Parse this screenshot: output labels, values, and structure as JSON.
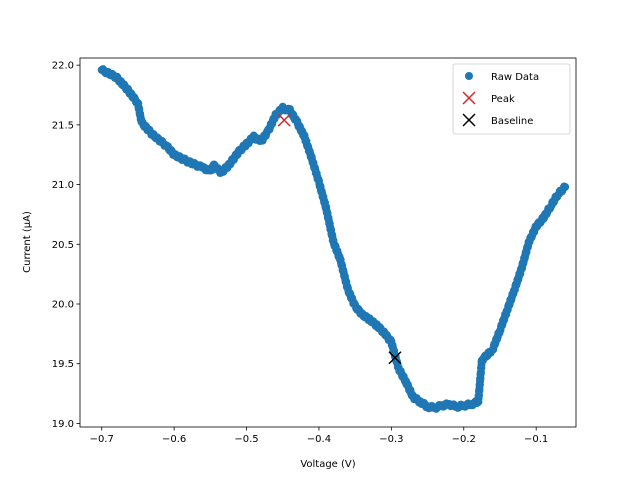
{
  "chart_data": {
    "type": "scatter",
    "xlabel": "Voltage (V)",
    "ylabel": "Current (µA)",
    "xlim": [
      -0.73,
      -0.045
    ],
    "ylim": [
      18.97,
      22.06
    ],
    "xticks": [
      -0.7,
      -0.6,
      -0.5,
      -0.4,
      -0.3,
      -0.2,
      -0.1
    ],
    "xtick_labels": [
      "−0.7",
      "−0.6",
      "−0.5",
      "−0.4",
      "−0.3",
      "−0.2",
      "−0.1"
    ],
    "yticks": [
      19.0,
      19.5,
      20.0,
      20.5,
      21.0,
      21.5,
      22.0
    ],
    "ytick_labels": [
      "19.0",
      "19.5",
      "20.0",
      "20.5",
      "21.0",
      "21.5",
      "22.0"
    ],
    "legend_position": "top-right",
    "series": [
      {
        "name": "Raw Data",
        "marker": "circle",
        "color": "#1f77b4",
        "curve": [
          [
            -0.7,
            21.96
          ],
          [
            -0.68,
            21.9
          ],
          [
            -0.665,
            21.8
          ],
          [
            -0.65,
            21.68
          ],
          [
            -0.645,
            21.52
          ],
          [
            -0.63,
            21.42
          ],
          [
            -0.61,
            21.32
          ],
          [
            -0.6,
            21.25
          ],
          [
            -0.58,
            21.19
          ],
          [
            -0.56,
            21.14
          ],
          [
            -0.55,
            21.11
          ],
          [
            -0.545,
            21.16
          ],
          [
            -0.535,
            21.1
          ],
          [
            -0.525,
            21.16
          ],
          [
            -0.51,
            21.28
          ],
          [
            -0.5,
            21.34
          ],
          [
            -0.49,
            21.4
          ],
          [
            -0.48,
            21.36
          ],
          [
            -0.47,
            21.45
          ],
          [
            -0.46,
            21.58
          ],
          [
            -0.45,
            21.64
          ],
          [
            -0.44,
            21.62
          ],
          [
            -0.43,
            21.52
          ],
          [
            -0.42,
            21.4
          ],
          [
            -0.41,
            21.22
          ],
          [
            -0.4,
            21.02
          ],
          [
            -0.39,
            20.8
          ],
          [
            -0.38,
            20.52
          ],
          [
            -0.37,
            20.36
          ],
          [
            -0.36,
            20.12
          ],
          [
            -0.35,
            19.98
          ],
          [
            -0.34,
            19.91
          ],
          [
            -0.33,
            19.87
          ],
          [
            -0.32,
            19.82
          ],
          [
            -0.31,
            19.76
          ],
          [
            -0.3,
            19.68
          ],
          [
            -0.29,
            19.46
          ],
          [
            -0.28,
            19.35
          ],
          [
            -0.27,
            19.22
          ],
          [
            -0.26,
            19.18
          ],
          [
            -0.25,
            19.14
          ],
          [
            -0.24,
            19.13
          ],
          [
            -0.23,
            19.15
          ],
          [
            -0.22,
            19.16
          ],
          [
            -0.21,
            19.14
          ],
          [
            -0.2,
            19.15
          ],
          [
            -0.19,
            19.16
          ],
          [
            -0.18,
            19.18
          ],
          [
            -0.175,
            19.53
          ],
          [
            -0.16,
            19.62
          ],
          [
            -0.15,
            19.78
          ],
          [
            -0.14,
            19.95
          ],
          [
            -0.13,
            20.12
          ],
          [
            -0.12,
            20.3
          ],
          [
            -0.11,
            20.52
          ],
          [
            -0.1,
            20.65
          ],
          [
            -0.09,
            20.72
          ],
          [
            -0.08,
            20.82
          ],
          [
            -0.07,
            20.92
          ],
          [
            -0.06,
            20.98
          ]
        ]
      },
      {
        "name": "Peak",
        "marker": "x",
        "color": "#d62728",
        "x": [
          -0.448
        ],
        "y": [
          21.54
        ]
      },
      {
        "name": "Baseline",
        "marker": "x",
        "color": "#000000",
        "x": [
          -0.295
        ],
        "y": [
          19.55
        ]
      }
    ]
  }
}
